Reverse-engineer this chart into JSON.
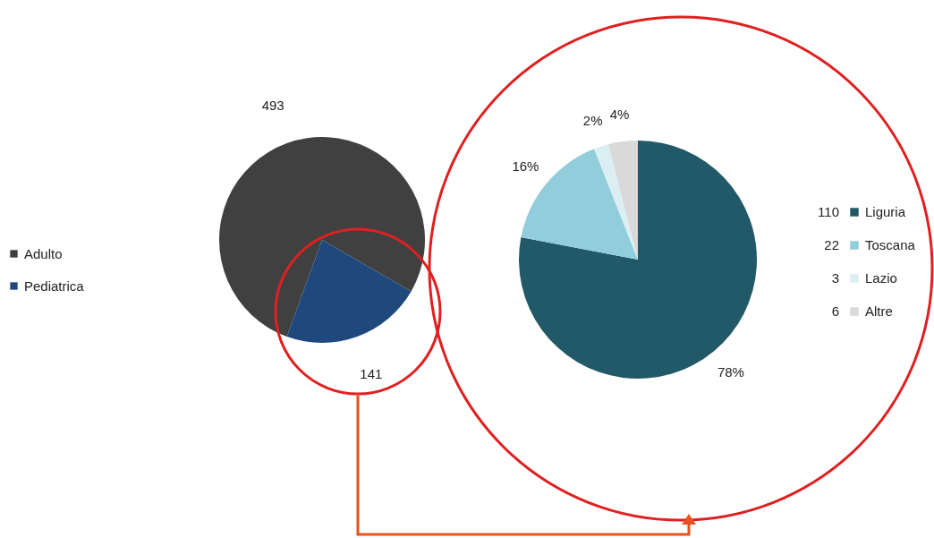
{
  "chart_data": [
    {
      "type": "pie",
      "categories": [
        "Adulto",
        "Pediatrica"
      ],
      "values": [
        493,
        141
      ],
      "colors": [
        "#404040",
        "#1f497d"
      ],
      "data_labels": true,
      "legend": "left"
    },
    {
      "type": "pie",
      "categories": [
        "Liguria",
        "Toscana",
        "Lazio",
        "Altre"
      ],
      "values": [
        78,
        16,
        2,
        4
      ],
      "colors": [
        "#215968",
        "#92cddc",
        "#dbeef4",
        "#d9d9d9"
      ],
      "value_labels": [
        "78%",
        "16%",
        "2%",
        "4%"
      ],
      "annotations": [
        "110",
        "22",
        "3",
        "6"
      ],
      "legend": "right"
    }
  ]
}
